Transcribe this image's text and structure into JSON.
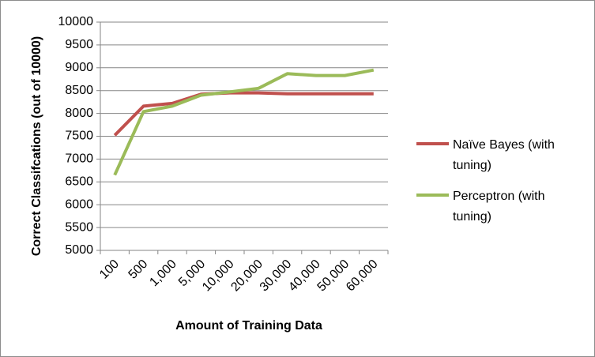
{
  "chart_data": {
    "type": "line",
    "title": "",
    "xlabel": "Amount of Training Data",
    "ylabel": "Correct Classifcations (out of 10000)",
    "categories": [
      "100",
      "500",
      "1,000",
      "5,000",
      "10,000",
      "20,000",
      "30,000",
      "40,000",
      "50,000",
      "60,000"
    ],
    "yticks": [
      "5000",
      "5500",
      "6000",
      "6500",
      "7000",
      "7500",
      "8000",
      "8500",
      "9000",
      "9500",
      "10000"
    ],
    "ylim": [
      5000,
      10000
    ],
    "grid": true,
    "legend_position": "right",
    "series": [
      {
        "name_lines": [
          "Naïve Bayes (with",
          "tuning)"
        ],
        "color": "#c0504d",
        "values": [
          7520,
          8160,
          8220,
          8420,
          8450,
          8450,
          8430,
          8430,
          8430,
          8430
        ]
      },
      {
        "name_lines": [
          "Perceptron (with",
          "tuning)"
        ],
        "color": "#9bbb59",
        "values": [
          6650,
          8040,
          8160,
          8400,
          8470,
          8550,
          8870,
          8830,
          8830,
          8950
        ]
      }
    ]
  }
}
